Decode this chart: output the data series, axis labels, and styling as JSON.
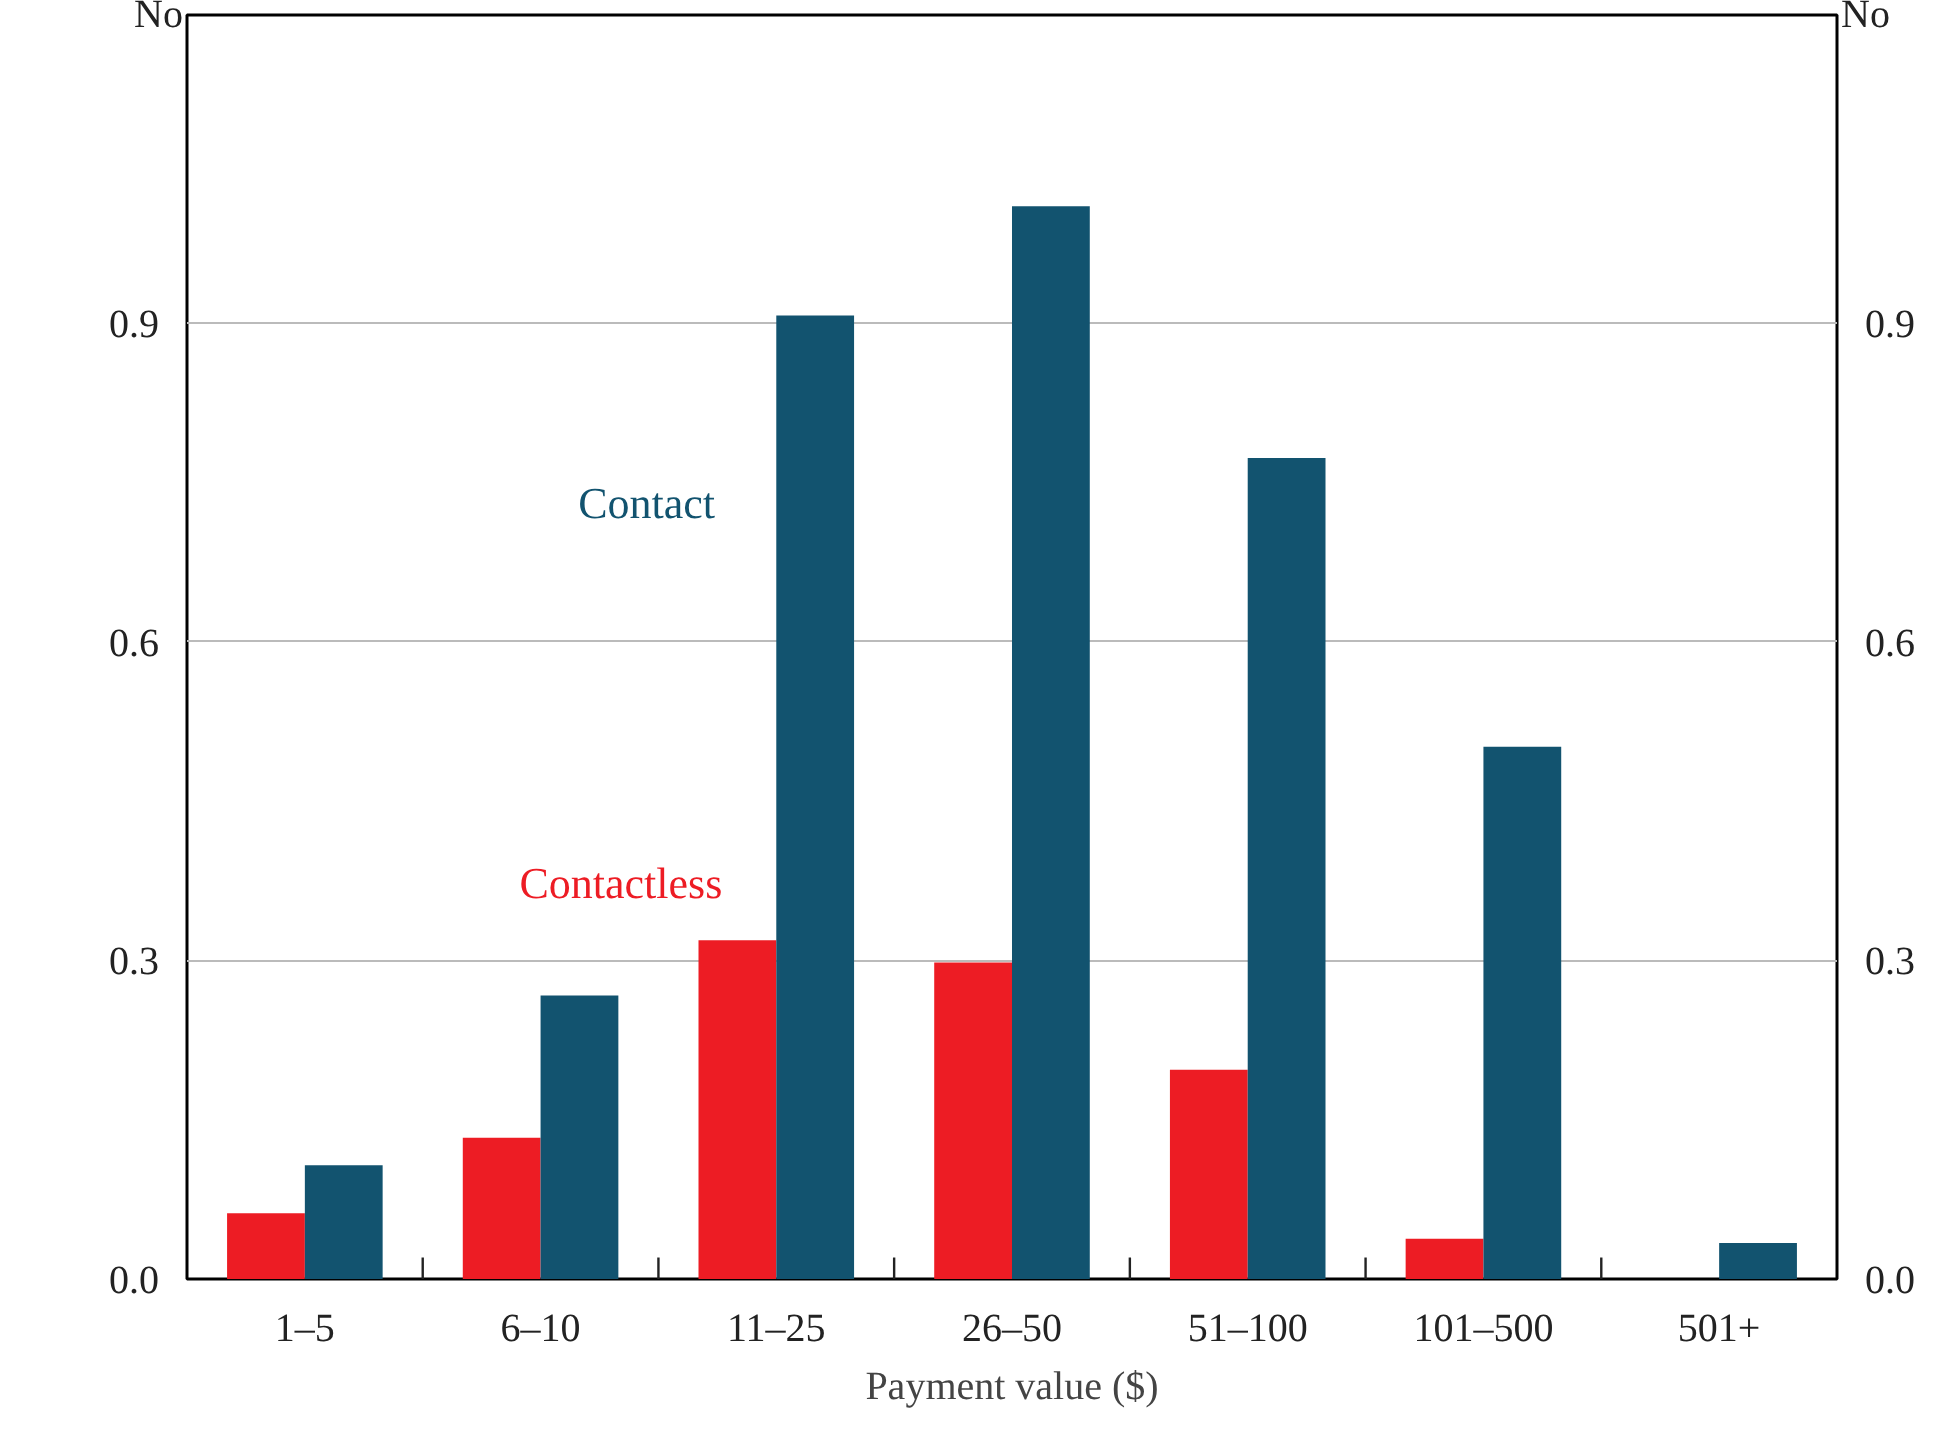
{
  "chart_data": {
    "type": "bar",
    "xlabel": "Payment value ($)",
    "ylabel": "No",
    "y2label": "No",
    "categories": [
      "1–5",
      "6–10",
      "11–25",
      "26–50",
      "51–100",
      "101–500",
      "501+"
    ],
    "series": [
      {
        "name": "Contactless",
        "color": "#ed1c24",
        "values": [
          0.062,
          0.133,
          0.319,
          0.298,
          0.197,
          0.038,
          0
        ]
      },
      {
        "name": "Contact",
        "color": "#12536f",
        "values": [
          0.107,
          0.267,
          0.907,
          1.01,
          0.773,
          0.501,
          0.034
        ]
      }
    ],
    "ylim": [
      0,
      1.19
    ],
    "yticks": [
      {
        "value": 0,
        "label": "0.0"
      },
      {
        "value": 0.3,
        "label": "0.3"
      },
      {
        "value": 0.6,
        "label": "0.6"
      },
      {
        "value": 0.9,
        "label": "0.9"
      }
    ],
    "y2lim": [
      0,
      1.19
    ],
    "y2ticks": [
      {
        "value": 0,
        "label": "0.0"
      },
      {
        "value": 0.3,
        "label": "0.3"
      },
      {
        "value": 0.6,
        "label": "0.6"
      },
      {
        "value": 0.9,
        "label": "0.9"
      }
    ],
    "grid": "y",
    "legend": false
  }
}
